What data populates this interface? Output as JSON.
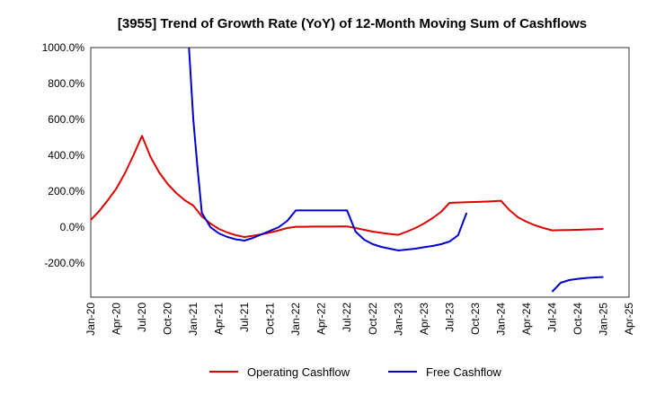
{
  "chart_data": {
    "type": "line",
    "title": "[3955]  Trend of Growth Rate (YoY) of 12-Month Moving Sum of Cashflows",
    "xlabel": "",
    "ylabel": "",
    "y_ticks": [
      {
        "value": 1000,
        "label": "1000.0%"
      },
      {
        "value": 800,
        "label": "800.0%"
      },
      {
        "value": 600,
        "label": "600.0%"
      },
      {
        "value": 400,
        "label": "400.0%"
      },
      {
        "value": 200,
        "label": "200.0%"
      },
      {
        "value": 0,
        "label": "0.0%"
      },
      {
        "value": -200,
        "label": "-200.0%"
      }
    ],
    "x_ticks": [
      {
        "value": 0,
        "label": "Jan-20"
      },
      {
        "value": 3,
        "label": "Apr-20"
      },
      {
        "value": 6,
        "label": "Jul-20"
      },
      {
        "value": 9,
        "label": "Oct-20"
      },
      {
        "value": 12,
        "label": "Jan-21"
      },
      {
        "value": 15,
        "label": "Apr-21"
      },
      {
        "value": 18,
        "label": "Jul-21"
      },
      {
        "value": 21,
        "label": "Oct-21"
      },
      {
        "value": 24,
        "label": "Jan-22"
      },
      {
        "value": 27,
        "label": "Apr-22"
      },
      {
        "value": 30,
        "label": "Jul-22"
      },
      {
        "value": 33,
        "label": "Oct-22"
      },
      {
        "value": 36,
        "label": "Jan-23"
      },
      {
        "value": 39,
        "label": "Apr-23"
      },
      {
        "value": 42,
        "label": "Jul-23"
      },
      {
        "value": 45,
        "label": "Oct-23"
      },
      {
        "value": 48,
        "label": "Jan-24"
      },
      {
        "value": 51,
        "label": "Apr-24"
      },
      {
        "value": 54,
        "label": "Jul-24"
      },
      {
        "value": 57,
        "label": "Oct-24"
      },
      {
        "value": 60,
        "label": "Jan-25"
      },
      {
        "value": 63,
        "label": "Apr-25"
      }
    ],
    "xlim": [
      0,
      63
    ],
    "ylim": [
      -390,
      1000
    ],
    "grid": true,
    "legend_position": "bottom-center",
    "series": [
      {
        "name": "Operating Cashflow",
        "color": "#dd0000",
        "points": [
          [
            0,
            40
          ],
          [
            1,
            90
          ],
          [
            2,
            150
          ],
          [
            3,
            215
          ],
          [
            4,
            300
          ],
          [
            5,
            400
          ],
          [
            6,
            508
          ],
          [
            7,
            390
          ],
          [
            8,
            305
          ],
          [
            9,
            240
          ],
          [
            10,
            190
          ],
          [
            11,
            150
          ],
          [
            12,
            120
          ],
          [
            13,
            60
          ],
          [
            14,
            20
          ],
          [
            15,
            -10
          ],
          [
            16,
            -30
          ],
          [
            17,
            -45
          ],
          [
            18,
            -55
          ],
          [
            19,
            -48
          ],
          [
            20,
            -40
          ],
          [
            21,
            -30
          ],
          [
            22,
            -18
          ],
          [
            23,
            -5
          ],
          [
            24,
            2
          ],
          [
            25,
            2
          ],
          [
            26,
            3
          ],
          [
            27,
            3
          ],
          [
            28,
            3
          ],
          [
            29,
            4
          ],
          [
            30,
            4
          ],
          [
            31,
            -5
          ],
          [
            32,
            -15
          ],
          [
            33,
            -25
          ],
          [
            34,
            -32
          ],
          [
            35,
            -38
          ],
          [
            36,
            -43
          ],
          [
            37,
            -25
          ],
          [
            38,
            -5
          ],
          [
            39,
            20
          ],
          [
            40,
            50
          ],
          [
            41,
            85
          ],
          [
            42,
            135
          ],
          [
            43,
            137
          ],
          [
            44,
            139
          ],
          [
            45,
            140
          ],
          [
            46,
            142
          ],
          [
            47,
            144
          ],
          [
            48,
            147
          ],
          [
            49,
            95
          ],
          [
            50,
            55
          ],
          [
            51,
            30
          ],
          [
            52,
            10
          ],
          [
            53,
            -5
          ],
          [
            54,
            -18
          ],
          [
            55,
            -17
          ],
          [
            56,
            -16
          ],
          [
            57,
            -15
          ],
          [
            58,
            -13
          ],
          [
            59,
            -12
          ],
          [
            60,
            -10
          ]
        ]
      },
      {
        "name": "Free Cashflow",
        "color": "#0000cc",
        "segments": [
          [
            [
              11.5,
              1000
            ],
            [
              12,
              600
            ],
            [
              12.5,
              330
            ],
            [
              13,
              80
            ],
            [
              13.5,
              40
            ],
            [
              14,
              0
            ],
            [
              15,
              -35
            ],
            [
              16,
              -55
            ],
            [
              17,
              -68
            ],
            [
              18,
              -75
            ],
            [
              19,
              -60
            ],
            [
              20,
              -40
            ],
            [
              21,
              -20
            ],
            [
              22,
              0
            ],
            [
              23,
              35
            ],
            [
              24,
              93
            ],
            [
              25,
              93
            ],
            [
              26,
              93
            ],
            [
              27,
              93
            ],
            [
              28,
              93
            ],
            [
              29,
              93
            ],
            [
              30,
              93
            ],
            [
              31,
              -25
            ],
            [
              32,
              -70
            ],
            [
              33,
              -95
            ],
            [
              34,
              -110
            ],
            [
              35,
              -120
            ],
            [
              36,
              -130
            ],
            [
              37,
              -125
            ],
            [
              38,
              -120
            ],
            [
              39,
              -112
            ],
            [
              40,
              -105
            ],
            [
              41,
              -95
            ],
            [
              42,
              -80
            ],
            [
              43,
              -45
            ],
            [
              44,
              80
            ]
          ],
          [
            [
              54,
              -360
            ],
            [
              55,
              -310
            ],
            [
              56,
              -295
            ],
            [
              57,
              -288
            ],
            [
              58,
              -283
            ],
            [
              59,
              -280
            ],
            [
              60,
              -278
            ]
          ]
        ]
      }
    ]
  }
}
